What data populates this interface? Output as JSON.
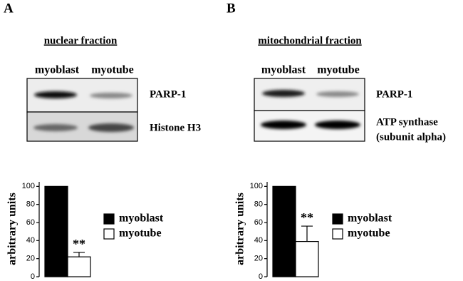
{
  "panels": [
    {
      "letter": "A",
      "fraction": "nuclear fraction",
      "lanes": [
        "myoblast",
        "myotube"
      ],
      "bands": [
        "PARP-1",
        "Histone H3"
      ]
    },
    {
      "letter": "B",
      "fraction": "mitochondrial fraction",
      "lanes": [
        "myoblast",
        "myotube"
      ],
      "bands": [
        "PARP-1",
        "ATP synthase",
        "(subunit alpha)"
      ]
    }
  ],
  "chart_data": [
    {
      "type": "bar",
      "y_label": "arbitrary units",
      "ylim": [
        0,
        105
      ],
      "yticks": [
        0,
        20,
        40,
        60,
        80,
        100
      ],
      "series": [
        {
          "name": "myoblast",
          "color": "#000000",
          "values": [
            100
          ]
        },
        {
          "name": "myotube",
          "color": "#ffffff",
          "values": [
            22
          ],
          "errors": [
            5
          ]
        }
      ],
      "annotation": "**"
    },
    {
      "type": "bar",
      "y_label": "arbitrary units",
      "ylim": [
        0,
        105
      ],
      "yticks": [
        0,
        20,
        40,
        60,
        80,
        100
      ],
      "series": [
        {
          "name": "myoblast",
          "color": "#000000",
          "values": [
            100
          ]
        },
        {
          "name": "myotube",
          "color": "#ffffff",
          "values": [
            39
          ],
          "errors": [
            17
          ]
        }
      ],
      "annotation": "**"
    }
  ]
}
